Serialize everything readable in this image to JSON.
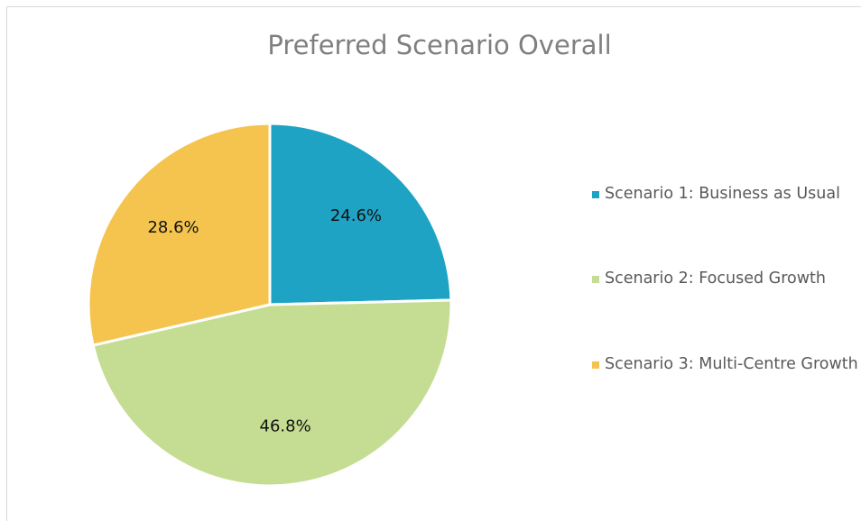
{
  "chart_data": {
    "type": "pie",
    "title": "Preferred Scenario Overall",
    "categories": [
      "Scenario 1: Business as Usual",
      "Scenario 2: Focused Growth",
      "Scenario 3: Multi-Centre Growth"
    ],
    "values": [
      24.6,
      46.8,
      28.6
    ],
    "value_labels": [
      "24.6%",
      "46.8%",
      "28.6%"
    ],
    "colors": [
      "#1fa3c5",
      "#c4dd92",
      "#f5c44f"
    ],
    "legend": "right"
  }
}
